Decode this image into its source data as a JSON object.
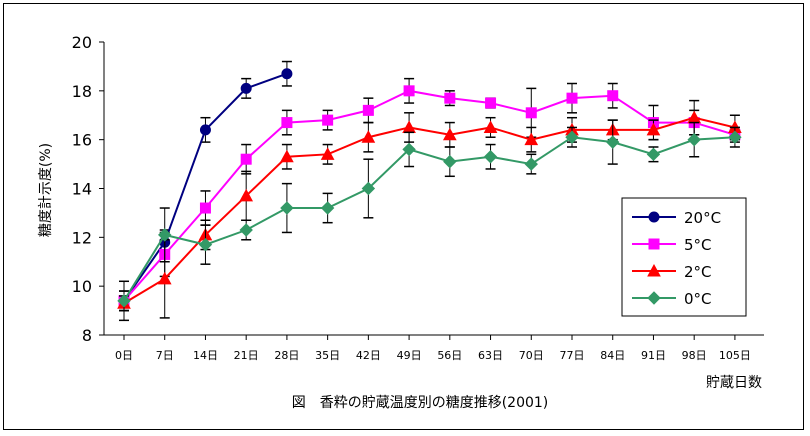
{
  "chart_data": {
    "type": "line",
    "caption": "図　香粋の貯蔵温度別の糖度推移(2001)",
    "xlabel": "貯蔵日数",
    "ylabel": "糖度計示度(%)",
    "ylim": [
      8,
      20
    ],
    "yticks": [
      8,
      10,
      12,
      14,
      16,
      18,
      20
    ],
    "x": [
      0,
      7,
      14,
      21,
      28,
      35,
      42,
      49,
      56,
      63,
      70,
      77,
      84,
      91,
      98,
      105
    ],
    "xtick_labels": [
      "0日",
      "7日",
      "14日",
      "21日",
      "28日",
      "35日",
      "42日",
      "49日",
      "56日",
      "63日",
      "70日",
      "77日",
      "84日",
      "91日",
      "98日",
      "105日"
    ],
    "grid": false,
    "legend_position": "right",
    "series": [
      {
        "name": "20°C",
        "color": "#000080",
        "marker": "circle",
        "x": [
          0,
          7,
          14,
          21,
          28
        ],
        "values": [
          9.4,
          11.8,
          16.4,
          18.1,
          18.7
        ],
        "errors": [
          0.4,
          0.5,
          0.5,
          0.4,
          0.5
        ]
      },
      {
        "name": "5°C",
        "color": "#ff00ff",
        "marker": "square",
        "x": [
          0,
          7,
          14,
          21,
          28,
          35,
          42,
          49,
          56,
          63,
          70,
          77,
          84,
          91,
          98,
          105
        ],
        "values": [
          9.4,
          11.3,
          13.2,
          15.2,
          16.7,
          16.8,
          17.2,
          18.0,
          17.7,
          17.5,
          17.1,
          17.7,
          17.8,
          16.7,
          16.7,
          16.2
        ],
        "errors": [
          0.4,
          0.9,
          0.7,
          0.6,
          0.5,
          0.4,
          0.5,
          0.5,
          0.3,
          0.2,
          1.0,
          0.6,
          0.5,
          0.7,
          0.5,
          0.3
        ]
      },
      {
        "name": "2°C",
        "color": "#ff0000",
        "marker": "triangle",
        "x": [
          0,
          7,
          14,
          21,
          28,
          35,
          42,
          49,
          56,
          63,
          70,
          77,
          84,
          91,
          98,
          105
        ],
        "values": [
          9.3,
          10.3,
          12.1,
          13.7,
          15.3,
          15.4,
          16.1,
          16.5,
          16.2,
          16.5,
          16.0,
          16.4,
          16.4,
          16.4,
          16.9,
          16.5
        ],
        "errors": [
          0.3,
          1.6,
          0.6,
          1.0,
          0.5,
          0.4,
          0.6,
          0.6,
          0.5,
          0.4,
          0.5,
          0.5,
          0.4,
          0.4,
          0.7,
          0.5
        ]
      },
      {
        "name": "0°C",
        "color": "#339966",
        "marker": "diamond",
        "x": [
          0,
          7,
          14,
          21,
          28,
          35,
          42,
          49,
          56,
          63,
          70,
          77,
          84,
          91,
          98,
          105
        ],
        "values": [
          9.4,
          12.1,
          11.7,
          12.3,
          13.2,
          13.2,
          14.0,
          15.6,
          15.1,
          15.3,
          15.0,
          16.1,
          15.9,
          15.4,
          16.0,
          16.1
        ],
        "errors": [
          0.8,
          1.1,
          0.8,
          0.4,
          1.0,
          0.6,
          1.2,
          0.7,
          0.6,
          0.5,
          0.4,
          0.4,
          0.9,
          0.3,
          0.7,
          0.4
        ]
      }
    ]
  }
}
